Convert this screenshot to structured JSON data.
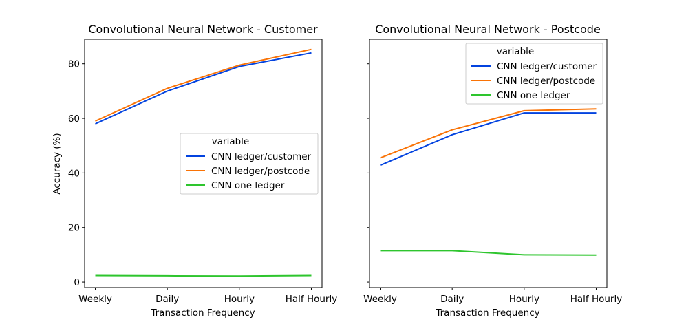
{
  "colors": {
    "CNN ledger/customer": "#0343df",
    "CNN ledger/postcode": "#f97306",
    "CNN one ledger": "#2ec52e"
  },
  "chart_data": [
    {
      "type": "line",
      "title": "Convolutional Neural Network - Customer",
      "xlabel": "Transaction Frequency",
      "ylabel": "Accuracy (%)",
      "categories": [
        "Weekly",
        "Daily",
        "Hourly",
        "Half Hourly"
      ],
      "ylim": [
        -2,
        89
      ],
      "yticks": [
        0,
        20,
        40,
        60,
        80
      ],
      "legend": {
        "title": "variable",
        "location": "center-right"
      },
      "series": [
        {
          "name": "CNN ledger/customer",
          "values": [
            58.0,
            70.0,
            79.0,
            84.0
          ]
        },
        {
          "name": "CNN ledger/postcode",
          "values": [
            59.0,
            71.0,
            79.5,
            85.3
          ]
        },
        {
          "name": "CNN one ledger",
          "values": [
            2.4,
            2.3,
            2.2,
            2.4
          ]
        }
      ]
    },
    {
      "type": "line",
      "title": "Convolutional Neural Network - Postcode",
      "xlabel": "Transaction Frequency",
      "ylabel": "",
      "categories": [
        "Weekly",
        "Daily",
        "Hourly",
        "Half Hourly"
      ],
      "ylim": [
        -2,
        89
      ],
      "yticks": [
        0,
        20,
        40,
        60,
        80
      ],
      "legend": {
        "title": "variable",
        "location": "upper-right"
      },
      "series": [
        {
          "name": "CNN ledger/customer",
          "values": [
            42.8,
            54.0,
            62.0,
            62.0
          ]
        },
        {
          "name": "CNN ledger/postcode",
          "values": [
            45.5,
            55.8,
            62.8,
            63.5
          ]
        },
        {
          "name": "CNN one ledger",
          "values": [
            11.5,
            11.5,
            10.0,
            9.9
          ]
        }
      ]
    }
  ]
}
